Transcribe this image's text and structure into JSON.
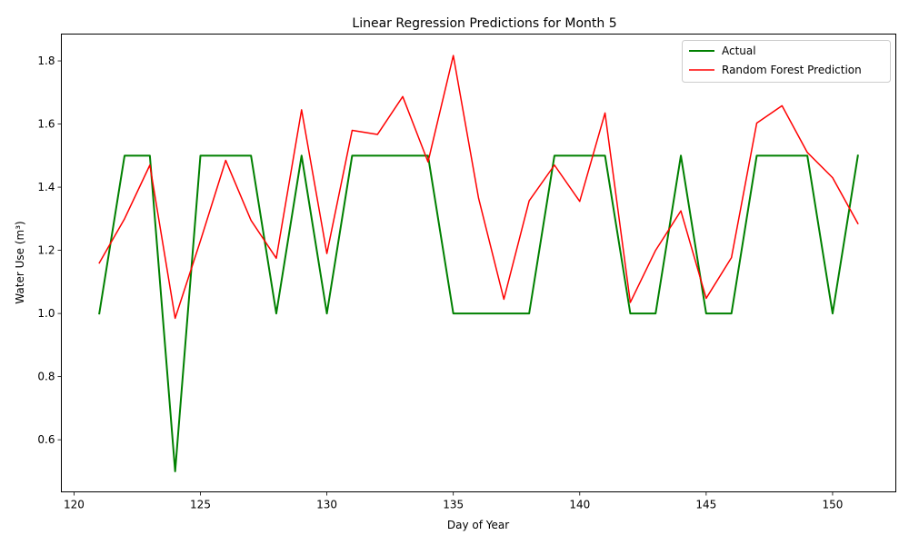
{
  "chart_data": {
    "type": "line",
    "title": "Linear Regression Predictions for Month 5",
    "xlabel": "Day of Year",
    "ylabel": "Water Use (m³)",
    "xlim": [
      119.5,
      152.5
    ],
    "ylim": [
      0.435,
      1.885
    ],
    "xticks": [
      120,
      125,
      130,
      135,
      140,
      145,
      150
    ],
    "yticks": [
      0.6,
      0.8,
      1.0,
      1.2,
      1.4,
      1.6,
      1.8
    ],
    "grid": false,
    "legend_position": "top-right",
    "x": [
      121,
      122,
      123,
      124,
      125,
      126,
      127,
      128,
      129,
      130,
      131,
      132,
      133,
      134,
      135,
      136,
      137,
      138,
      139,
      140,
      141,
      142,
      143,
      144,
      145,
      146,
      147,
      148,
      149,
      150,
      151
    ],
    "series": [
      {
        "name": "Actual",
        "color": "#008000",
        "line_width": 2,
        "values": [
          1.0,
          1.5,
          1.5,
          0.5,
          1.5,
          1.5,
          1.5,
          1.0,
          1.5,
          1.0,
          1.5,
          1.5,
          1.5,
          1.5,
          1.0,
          1.0,
          1.0,
          1.0,
          1.5,
          1.5,
          1.5,
          1.0,
          1.0,
          1.5,
          1.0,
          1.0,
          1.5,
          1.5,
          1.5,
          1.0,
          1.5
        ]
      },
      {
        "name": "Random Forest Prediction",
        "color": "#ff0000",
        "line_width": 1.5,
        "values": [
          1.16,
          1.3,
          1.47,
          0.985,
          1.23,
          1.485,
          1.295,
          1.175,
          1.645,
          1.19,
          1.58,
          1.567,
          1.687,
          1.48,
          1.817,
          1.365,
          1.045,
          1.357,
          1.47,
          1.355,
          1.635,
          1.035,
          1.2,
          1.325,
          1.048,
          1.177,
          1.603,
          1.658,
          1.51,
          1.43,
          1.285
        ]
      }
    ]
  }
}
